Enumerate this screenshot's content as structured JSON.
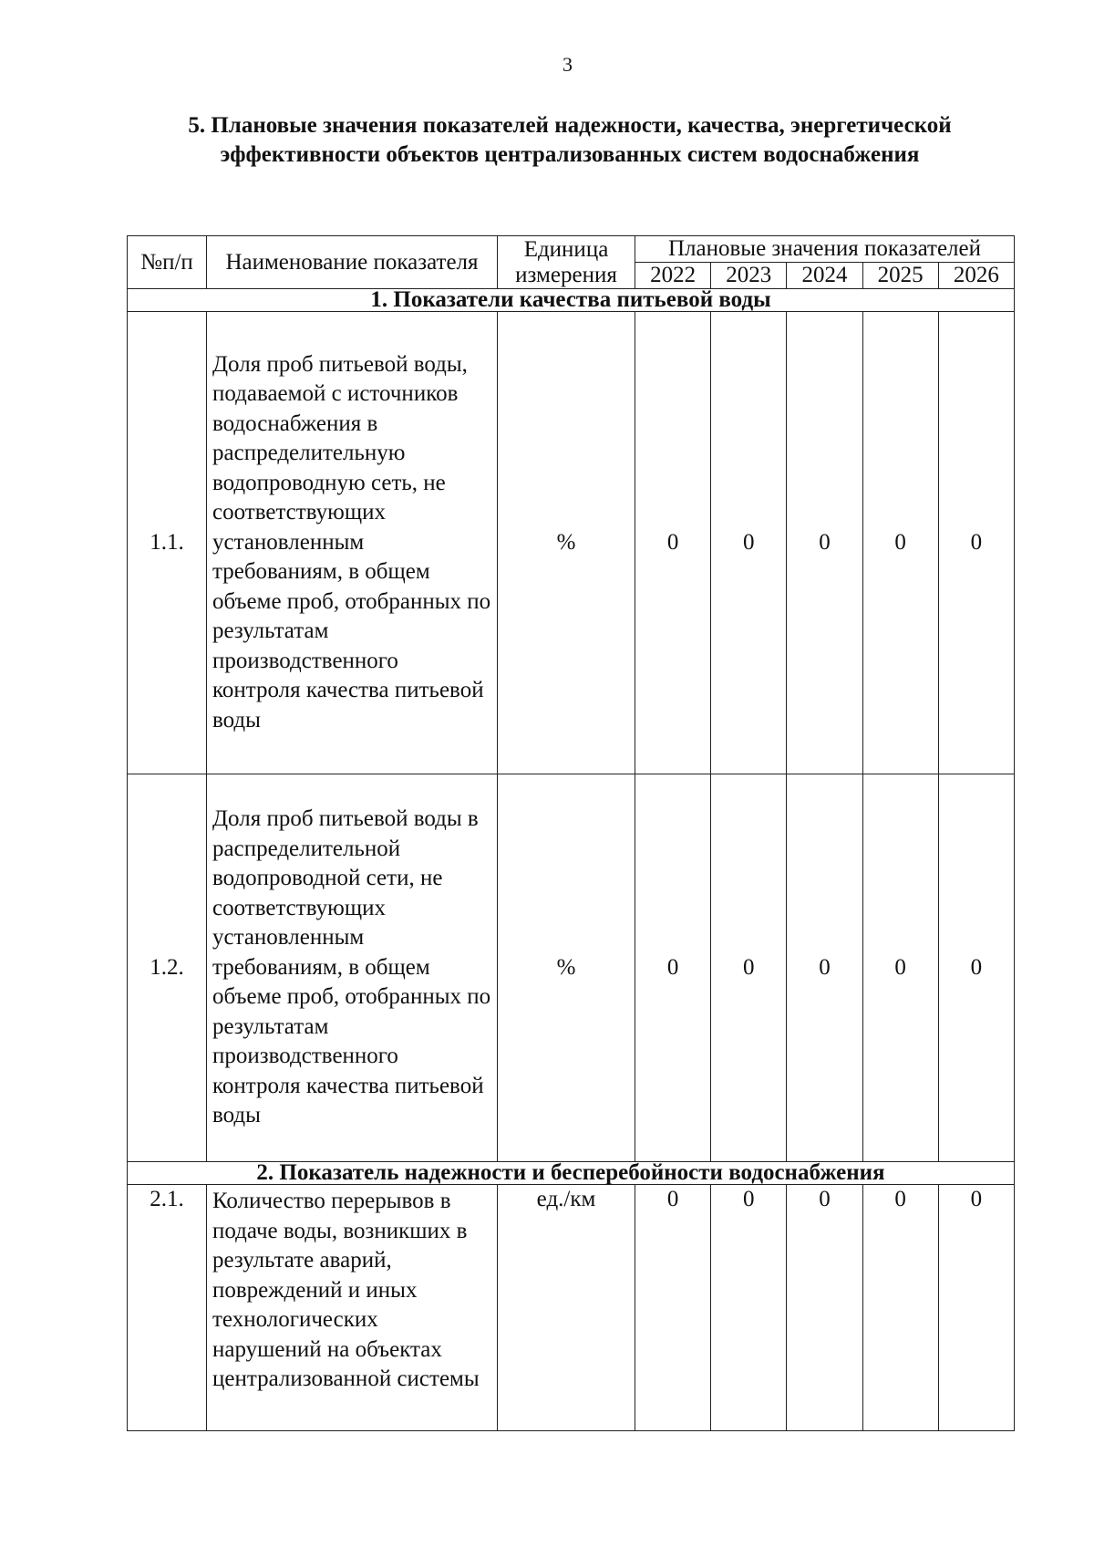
{
  "page_number": "3",
  "title": "5. Плановые значения показателей надежности, качества, энергетической эффективности объектов централизованных систем водоснабжения",
  "table": {
    "headers": {
      "num": "№п/п",
      "name": "Наименование показателя",
      "unit": "Единица измерения",
      "planned": "Плановые значения показателей",
      "years": [
        "2022",
        "2023",
        "2024",
        "2025",
        "2026"
      ]
    },
    "sections": [
      {
        "title": "1. Показатели качества питьевой воды",
        "rows": [
          {
            "num": "1.1.",
            "name": "Доля проб питьевой воды, подаваемой с источников водоснабжения в распределительную водопроводную сеть, не соответствующих установленным требованиям, в общем объеме проб, отобранных по результатам производственного контроля качества питьевой воды",
            "unit": "%",
            "values": [
              "0",
              "0",
              "0",
              "0",
              "0"
            ]
          },
          {
            "num": "1.2.",
            "name": "Доля проб питьевой воды в распределительной водопроводной сети, не соответствующих установленным требованиям, в общем объеме проб, отобранных по результатам производственного контроля качества питьевой воды",
            "unit": "%",
            "values": [
              "0",
              "0",
              "0",
              "0",
              "0"
            ]
          }
        ]
      },
      {
        "title": "2. Показатель надежности и бесперебойности водоснабжения",
        "rows": [
          {
            "num": "2.1.",
            "name": "Количество перерывов в подаче воды, возникших в результате аварий, повреждений и иных технологических нарушений на объектах централизованной системы",
            "unit": "ед./км",
            "values": [
              "0",
              "0",
              "0",
              "0",
              "0"
            ]
          }
        ]
      }
    ]
  }
}
